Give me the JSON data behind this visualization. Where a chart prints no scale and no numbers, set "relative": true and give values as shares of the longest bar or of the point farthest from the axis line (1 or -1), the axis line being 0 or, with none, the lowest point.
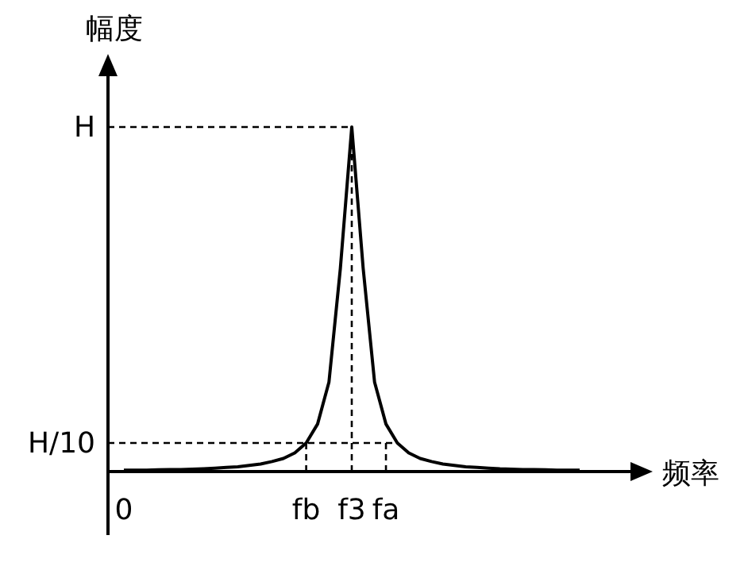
{
  "chart_data": {
    "type": "line",
    "xlabel": "频率",
    "ylabel": "幅度",
    "relative": true,
    "categories": [
      "0",
      null,
      null,
      null,
      null,
      null,
      null,
      null,
      null,
      null,
      null,
      null,
      null,
      null,
      null,
      null,
      "fb",
      null,
      null,
      null,
      "f3",
      null,
      null,
      "fa",
      null,
      null,
      null,
      null,
      null,
      null,
      null,
      null,
      null,
      null,
      null,
      null,
      null,
      null,
      null,
      null,
      null
    ],
    "series": [
      {
        "color": "#000000",
        "values": [
          0.004,
          0.004,
          0.004,
          0.005,
          0.006,
          0.006,
          0.007,
          0.008,
          0.01,
          0.012,
          0.014,
          0.018,
          0.022,
          0.029,
          0.038,
          0.054,
          0.083,
          0.138,
          0.26,
          0.59,
          1,
          0.59,
          0.26,
          0.138,
          0.083,
          0.054,
          0.038,
          0.029,
          0.022,
          0.018,
          0.014,
          0.012,
          0.01,
          0.008,
          0.007,
          0.006,
          0.006,
          0.005,
          0.004,
          0.004,
          0.004
        ]
      }
    ],
    "annotations": [
      "H",
      "H/10"
    ],
    "grid": false,
    "marker": "none",
    "line_style": "solid"
  }
}
